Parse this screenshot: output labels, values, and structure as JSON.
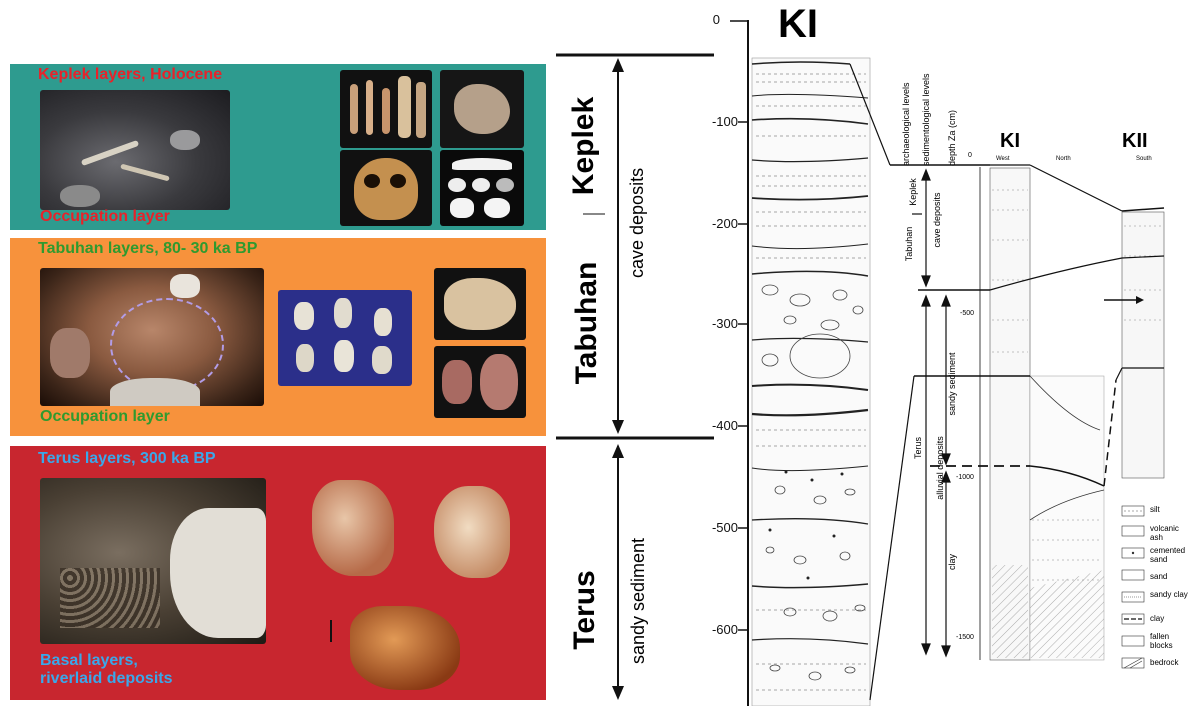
{
  "panels": {
    "keplek": {
      "title": "Keplek layers, Holocene",
      "caption": "Occupation layer"
    },
    "tabuhan": {
      "title": "Tabuhan layers, 80- 30 ka BP",
      "caption": "Occupation layer"
    },
    "terus": {
      "title": "Terus layers, 300 ka BP",
      "caption_line1": "Basal layers,",
      "caption_line2": "riverlaid deposits"
    }
  },
  "strat_labels": {
    "keplek": "Keplek",
    "tabuhan": "Tabuhan",
    "cave": "cave deposits",
    "terus": "Terus",
    "sandy": "sandy sediment"
  },
  "ki_column": {
    "title": "KI",
    "ticks": [
      "0",
      "-100",
      "-200",
      "-300",
      "-400",
      "-500",
      "-600"
    ]
  },
  "right_section": {
    "headers": [
      "archaeological levels",
      "sedimentological levels",
      "depth Za (cm)"
    ],
    "ki_title": "KI",
    "kii_title": "KII",
    "dir_west": "West",
    "dir_north": "North",
    "dir_south": "South",
    "depth_ticks": [
      "0",
      "-500",
      "-1000",
      "-1500"
    ],
    "levels": {
      "keplek": "Keplek",
      "tabuhan": "Tabuhan",
      "cave": "cave deposits",
      "terus": "Terus",
      "sandy": "sandy sediment",
      "alluvial": "alluvial deposits",
      "clay": "clay"
    },
    "legend": [
      "silt",
      "volcanic ash",
      "cemented sand",
      "sand",
      "sandy clay",
      "clay",
      "fallen blocks",
      "bedrock"
    ]
  }
}
